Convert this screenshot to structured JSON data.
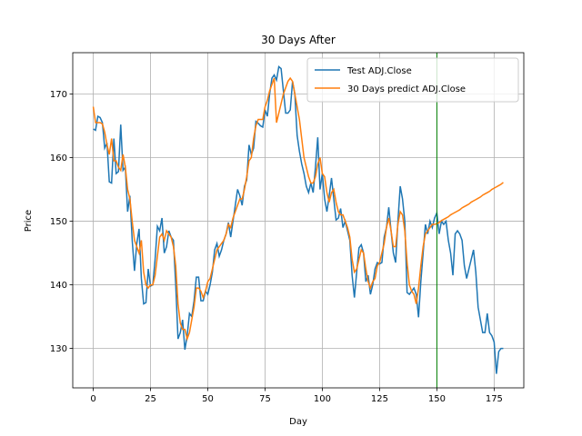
{
  "chart_data": {
    "type": "line",
    "title": "30 Days After",
    "x_label": "Day",
    "y_label": "Price",
    "x": [
      0,
      1,
      2,
      3,
      4,
      5,
      6,
      7,
      8,
      9,
      10,
      11,
      12,
      13,
      14,
      15,
      16,
      17,
      18,
      19,
      20,
      21,
      22,
      23,
      24,
      25,
      26,
      27,
      28,
      29,
      30,
      31,
      32,
      33,
      34,
      35,
      36,
      37,
      38,
      39,
      40,
      41,
      42,
      43,
      44,
      45,
      46,
      47,
      48,
      49,
      50,
      51,
      52,
      53,
      54,
      55,
      56,
      57,
      58,
      59,
      60,
      61,
      62,
      63,
      64,
      65,
      66,
      67,
      68,
      69,
      70,
      71,
      72,
      73,
      74,
      75,
      76,
      77,
      78,
      79,
      80,
      81,
      82,
      83,
      84,
      85,
      86,
      87,
      88,
      89,
      90,
      91,
      92,
      93,
      94,
      95,
      96,
      97,
      98,
      99,
      100,
      101,
      102,
      103,
      104,
      105,
      106,
      107,
      108,
      109,
      110,
      111,
      112,
      113,
      114,
      115,
      116,
      117,
      118,
      119,
      120,
      121,
      122,
      123,
      124,
      125,
      126,
      127,
      128,
      129,
      130,
      131,
      132,
      133,
      134,
      135,
      136,
      137,
      138,
      139,
      140,
      141,
      142,
      143,
      144,
      145,
      146,
      147,
      148,
      149,
      150,
      151,
      152,
      153,
      154,
      155,
      156,
      157,
      158,
      159,
      160,
      161,
      162,
      163,
      164,
      165,
      166,
      167,
      168,
      169,
      170,
      171,
      172,
      173,
      174,
      175,
      176,
      177,
      178,
      179
    ],
    "series": [
      {
        "name": "Test ADJ.Close",
        "color": "#1f77b4",
        "values": [
          164.5,
          164.3,
          166.5,
          166.3,
          165.5,
          161.5,
          162.3,
          156.2,
          156,
          163,
          157.5,
          157.8,
          165.2,
          158,
          158.5,
          151.5,
          154,
          147,
          142.2,
          146.5,
          148.8,
          141,
          137,
          137.2,
          142.5,
          139.8,
          140,
          144,
          149.2,
          148.5,
          150.5,
          145,
          146,
          148.5,
          147.5,
          147,
          140,
          131.5,
          132.5,
          134.5,
          129.8,
          132,
          135.5,
          135,
          137.5,
          141.2,
          141.2,
          137.5,
          137.5,
          139,
          138.5,
          140,
          142,
          145.5,
          146.5,
          144.5,
          145.5,
          147,
          148,
          149.8,
          147.5,
          150,
          152.5,
          155,
          154,
          152.5,
          155.5,
          156.5,
          162,
          160.5,
          161.5,
          165.7,
          165.4,
          165,
          164.8,
          167.5,
          166.5,
          170,
          172.5,
          173,
          172.2,
          174.3,
          174,
          170.5,
          167,
          167,
          167.5,
          172,
          170,
          163.5,
          161,
          159,
          157.5,
          155.5,
          154.5,
          156,
          154.5,
          158.5,
          163.2,
          155,
          157.5,
          153.5,
          151.5,
          154,
          156.8,
          153.5,
          150.2,
          150.5,
          152,
          149,
          150,
          148.5,
          147,
          141.5,
          138,
          142,
          145.8,
          146.3,
          145,
          140.5,
          141.5,
          138.5,
          140,
          142.5,
          143.5,
          143.3,
          143.5,
          147.5,
          149,
          152.2,
          148.5,
          145,
          143.5,
          150,
          155.5,
          153.5,
          150,
          138.8,
          138.5,
          139,
          139.5,
          138.5,
          134.9,
          140.5,
          145,
          149.5,
          148,
          150,
          149,
          150.5,
          151.3,
          148,
          150,
          149.5,
          150,
          147,
          145,
          141.5,
          148,
          148.5,
          148,
          147,
          143,
          141,
          142.5,
          144,
          145.5,
          142,
          136.5,
          134.5,
          132.5,
          132.5,
          135.5,
          132.5,
          132,
          131,
          126,
          129.5,
          130,
          130
        ]
      },
      {
        "name": "30 Days predict ADJ.Close",
        "color": "#ff7f0e",
        "values": [
          168,
          165.5,
          165.5,
          165.5,
          165.3,
          164,
          162,
          160.5,
          163,
          159.5,
          159.5,
          158.5,
          158,
          160.5,
          158.5,
          155,
          153.5,
          150,
          147,
          146,
          145,
          147,
          142,
          140,
          139.5,
          140,
          140,
          141.5,
          144.5,
          147.5,
          148,
          147,
          148.5,
          148,
          147.5,
          146,
          143,
          137,
          134,
          133,
          133,
          131.5,
          132.5,
          134.5,
          136.5,
          139.5,
          139.5,
          139,
          138,
          139,
          140.5,
          141,
          142.5,
          144,
          145.5,
          146,
          146.5,
          147,
          148,
          149.5,
          149,
          150.5,
          151.5,
          152.5,
          153.5,
          153.5,
          155,
          157,
          159.5,
          160,
          163,
          165,
          166,
          166,
          166,
          168,
          169,
          170.5,
          171.5,
          172.5,
          165.5,
          167,
          168.5,
          170,
          171,
          172,
          172.5,
          172,
          170,
          168,
          166,
          163,
          160,
          158.5,
          157,
          156,
          156,
          157,
          159,
          160,
          157.5,
          157,
          154.5,
          153,
          154.5,
          155,
          153,
          151.5,
          151,
          151,
          150,
          149,
          147.5,
          144,
          142,
          142.5,
          144,
          145.5,
          145,
          142.5,
          140.5,
          139.5,
          140.5,
          141,
          143,
          143.5,
          145,
          146.5,
          149,
          150.5,
          148.5,
          146,
          146,
          149.5,
          151.5,
          151,
          148.5,
          143.5,
          140,
          139,
          138.5,
          137,
          139.5,
          143,
          146,
          148,
          148.5,
          149,
          149.5,
          149.5,
          149.6,
          149.8,
          150.1,
          150.3,
          150.5,
          150.7,
          151.0,
          151.2,
          151.4,
          151.6,
          151.8,
          152.1,
          152.3,
          152.5,
          152.7,
          153.0,
          153.2,
          153.4,
          153.6,
          153.8,
          154.1,
          154.3,
          154.5,
          154.7,
          155.0,
          155.2,
          155.4,
          155.6,
          155.8,
          156.1
        ]
      }
    ],
    "vline": 150,
    "vline_color": "green",
    "xlim": [
      -8.95,
      187.95
    ],
    "xticks": [
      0,
      25,
      50,
      75,
      100,
      125,
      150,
      175
    ],
    "ylim": [
      123.8,
      176.5
    ],
    "yticks": [
      130,
      140,
      150,
      160,
      170
    ],
    "grid": true,
    "legend": "upper right"
  }
}
